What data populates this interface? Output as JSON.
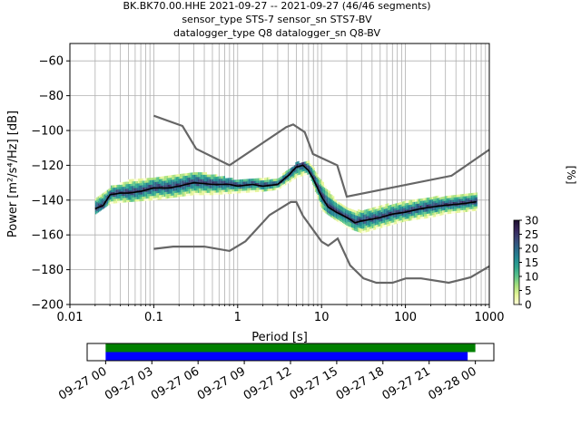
{
  "title": {
    "line1": "BK.BK70.00.HHE   2021-09-27 -- 2021-09-27  (46/46 segments)",
    "line2": "sensor_type STS-7 sensor_sn STS7-BV",
    "line3": "datalogger_type Q8 datalogger_sn Q8-BV"
  },
  "chart_data": [
    {
      "type": "heatmap",
      "subtype": "ppsd",
      "xlabel": "Period [s]",
      "ylabel": "Power [m²/s⁴/Hz] [dB]",
      "xscale": "log",
      "xlim": [
        0.01,
        1000
      ],
      "ylim": [
        -200,
        -50
      ],
      "x_ticks": [
        0.01,
        0.1,
        1,
        10,
        100,
        1000
      ],
      "x_tick_labels": [
        "0.01",
        "0.1",
        "1",
        "10",
        "100",
        "1000"
      ],
      "y_ticks": [
        -200,
        -180,
        -160,
        -140,
        -120,
        -100,
        -80,
        -60
      ],
      "y_tick_labels": [
        "−200",
        "−180",
        "−160",
        "−140",
        "−120",
        "−100",
        "−80",
        "−60"
      ],
      "grid": true,
      "colorbar": {
        "label": "[%]",
        "range": [
          0,
          30
        ],
        "ticks": [
          0,
          5,
          10,
          15,
          20,
          25,
          30
        ],
        "colormap": [
          "#fefed8",
          "#e6f59a",
          "#a9e17d",
          "#5cc48a",
          "#2ea48e",
          "#228692",
          "#2b6688",
          "#3a4576",
          "#36255a",
          "#1e0f2e"
        ]
      },
      "mode_line": {
        "color": "#000000",
        "periods": [
          0.02,
          0.025,
          0.03,
          0.04,
          0.05,
          0.07,
          0.1,
          0.15,
          0.2,
          0.3,
          0.5,
          0.8,
          1.0,
          1.5,
          2.0,
          3.0,
          4.0,
          5.0,
          6.0,
          7.0,
          8.0,
          10.0,
          12.0,
          15.0,
          20.0,
          25.0,
          30.0,
          40.0,
          50.0,
          70.0,
          100.0,
          150.0,
          200.0,
          300.0,
          500.0,
          700.0
        ],
        "db": [
          -145,
          -143,
          -137,
          -136,
          -136,
          -135,
          -133,
          -133,
          -132,
          -130,
          -131,
          -131,
          -132,
          -131,
          -132,
          -131,
          -126,
          -121,
          -120,
          -123,
          -128,
          -138,
          -144,
          -147,
          -150,
          -153,
          -152,
          -151,
          -150,
          -148,
          -147,
          -145,
          -144,
          -143,
          -142,
          -141
        ]
      },
      "density_band": {
        "periods": [
          0.02,
          0.03,
          0.05,
          0.1,
          0.2,
          0.3,
          0.5,
          1.0,
          2.0,
          3.0,
          5.0,
          7.0,
          10.0,
          15.0,
          20.0,
          30.0,
          50.0,
          100.0,
          200.0,
          300.0,
          700.0
        ],
        "upper_db": [
          -139,
          -133,
          -129,
          -128,
          -125,
          -124,
          -126,
          -129,
          -128,
          -128,
          -119,
          -118,
          -130,
          -141,
          -145,
          -147,
          -144,
          -141,
          -139,
          -138,
          -136
        ],
        "lower_db": [
          -148,
          -142,
          -141,
          -140,
          -138,
          -137,
          -137,
          -136,
          -135,
          -134,
          -127,
          -125,
          -146,
          -152,
          -156,
          -159,
          -156,
          -152,
          -150,
          -148,
          -146
        ]
      },
      "noise_models": [
        {
          "color": "#666666",
          "periods": [
            0.1,
            0.22,
            0.32,
            0.8,
            3.8,
            4.6,
            6.3,
            7.9,
            15.4,
            20.0,
            354.8,
            1000.0
          ],
          "db": [
            -91.5,
            -97.4,
            -110.5,
            -120.0,
            -98.0,
            -96.5,
            -101.0,
            -113.5,
            -120.0,
            -138.0,
            -126.0,
            -111.0
          ]
        },
        {
          "color": "#666666",
          "periods": [
            0.1,
            0.17,
            0.4,
            0.8,
            1.24,
            2.4,
            4.3,
            5.0,
            6.0,
            10.0,
            12.0,
            15.6,
            21.9,
            31.6,
            45.0,
            70.0,
            101.0,
            154.0,
            328.0,
            600.0,
            1000.0
          ],
          "db": [
            -168.0,
            -166.7,
            -166.7,
            -169.2,
            -163.7,
            -148.6,
            -141.1,
            -141.1,
            -149.0,
            -163.8,
            -166.2,
            -162.1,
            -177.5,
            -185.0,
            -187.5,
            -187.5,
            -185.0,
            -185.0,
            -187.5,
            -184.4,
            -178.0
          ]
        }
      ]
    },
    {
      "type": "timeline",
      "x_tick_labels": [
        "09-27 00",
        "09-27 03",
        "09-27 06",
        "09-27 09",
        "09-27 12",
        "09-27 15",
        "09-27 18",
        "09-27 21",
        "09-28 00"
      ],
      "x_hours": [
        0,
        3,
        6,
        9,
        12,
        15,
        18,
        21,
        24
      ],
      "xlim_hours": [
        -1.2,
        25.2
      ],
      "bars": [
        {
          "color": "#008000",
          "start_hour": 0.0,
          "end_hour": 24.0
        },
        {
          "color": "#0000ff",
          "start_hour": 0.0,
          "end_hour": 23.5
        }
      ]
    }
  ]
}
